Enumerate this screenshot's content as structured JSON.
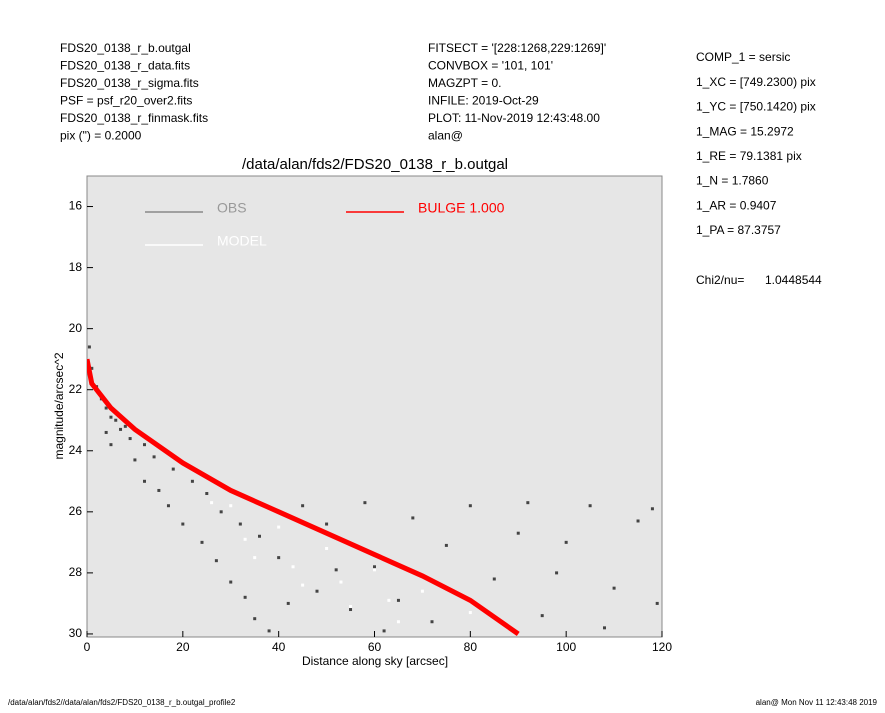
{
  "header": {
    "left": [
      "FDS20_0138_r_b.outgal",
      "FDS20_0138_r_data.fits",
      "FDS20_0138_r_sigma.fits",
      "PSF     = psf_r20_over2.fits",
      "FDS20_0138_r_finmask.fits",
      "pix (\") =  0.2000"
    ],
    "middle": [
      "FITSECT = '[228:1268,229:1269]'",
      "CONVBOX = '101, 101'",
      "MAGZPT  =            0.",
      "INFILE: 2019-Oct-29",
      "PLOT: 11-Nov-2019 12:43:48.00",
      "alan@"
    ],
    "params": [
      "COMP_1  = sersic",
      "1_XC    = [749.2300) pix",
      "1_YC    = [750.1420) pix",
      "1_MAG   = 15.2972",
      "1_RE    = 79.1381 pix",
      "1_N     = 1.7860",
      "1_AR    = 0.9407",
      "1_PA    = 87.3757"
    ],
    "chi2_label": "Chi2/nu=",
    "chi2_value": "1.0448544"
  },
  "footer": {
    "left": "/data/alan/fds2//data/alan/fds2/FDS20_0138_r_b.outgal_profile2",
    "right": "alan@  Mon Nov 11 12:43:48 2019"
  },
  "chart_data": {
    "type": "scatter",
    "title": "/data/alan/fds2/FDS20_0138_r_b.outgal",
    "x_label": "Distance along sky [arcsec]",
    "y_label": "magnitude/arcsec^2",
    "xlim": [
      0,
      120
    ],
    "xticks": [
      0,
      20,
      40,
      60,
      80,
      100,
      120
    ],
    "ylim": [
      30.1,
      15
    ],
    "yticks": [
      16,
      18,
      20,
      22,
      24,
      26,
      28,
      30
    ],
    "series": [
      {
        "name": "OBS",
        "color": "#444444",
        "mode": "markers",
        "x": [
          0.5,
          1,
          2,
          3,
          4,
          5,
          6,
          4,
          5,
          7,
          8,
          9,
          10,
          12,
          12,
          14,
          15,
          17,
          18,
          20,
          22,
          24,
          25,
          27,
          28,
          30,
          32,
          33,
          35,
          36,
          38,
          40,
          45,
          48,
          50,
          55,
          58,
          60,
          65,
          68,
          72,
          75,
          80,
          85,
          90,
          95,
          100,
          105,
          110,
          115,
          119,
          118,
          108,
          98,
          92,
          62,
          52,
          42
        ],
        "values": [
          20.6,
          21.3,
          21.9,
          22.3,
          22.6,
          22.9,
          23.0,
          23.4,
          23.8,
          23.3,
          23.2,
          23.6,
          24.3,
          23.8,
          25.0,
          24.2,
          25.3,
          25.8,
          24.6,
          26.4,
          25.0,
          27.0,
          25.4,
          27.6,
          26.0,
          28.3,
          26.4,
          28.8,
          29.5,
          26.8,
          29.9,
          27.5,
          25.8,
          28.6,
          26.4,
          29.2,
          25.7,
          27.8,
          28.9,
          26.2,
          29.6,
          27.1,
          25.8,
          28.2,
          26.7,
          29.4,
          27.0,
          25.8,
          28.5,
          26.3,
          29.0,
          25.9,
          29.8,
          28.0,
          25.7,
          29.9,
          27.9,
          29.0
        ]
      },
      {
        "name": "MODEL",
        "color": "#ffffff",
        "mode": "markers",
        "x": [
          26,
          30,
          35,
          40,
          45,
          50,
          55,
          60,
          65,
          70,
          80,
          88,
          33,
          43,
          53,
          63
        ],
        "values": [
          25.7,
          25.8,
          27.5,
          26.5,
          28.4,
          27.2,
          29.1,
          27.9,
          29.6,
          28.6,
          29.3,
          29.8,
          26.9,
          27.8,
          28.3,
          28.9
        ]
      },
      {
        "name": "BULGE  1.000",
        "color": "#ff0000",
        "mode": "line",
        "x": [
          0,
          1,
          5,
          10,
          20,
          30,
          40,
          50,
          60,
          70,
          80,
          90
        ],
        "values": [
          21.0,
          21.8,
          22.6,
          23.3,
          24.4,
          25.3,
          26.0,
          26.7,
          27.4,
          28.1,
          28.9,
          30.0
        ]
      }
    ]
  }
}
